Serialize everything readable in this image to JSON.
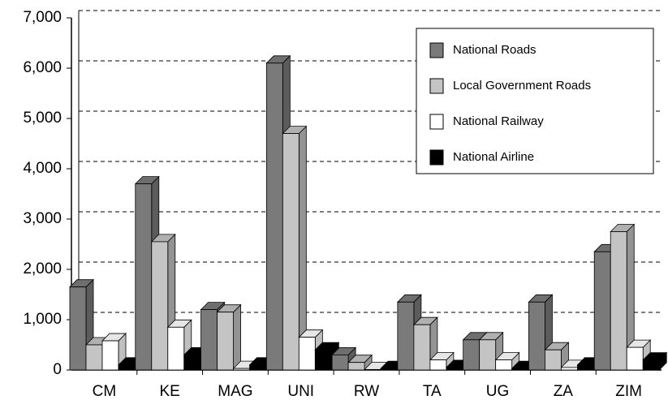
{
  "chart_data": {
    "type": "bar3d",
    "categories": [
      "CM",
      "KE",
      "MAG",
      "UNI",
      "RW",
      "TA",
      "UG",
      "ZA",
      "ZIM"
    ],
    "series": [
      {
        "name": "National Roads",
        "color": "#7a7a7a",
        "values": [
          1650,
          3700,
          1200,
          6100,
          300,
          1350,
          600,
          1350,
          2350
        ]
      },
      {
        "name": "Local Government Roads",
        "color": "#c4c4c4",
        "values": [
          500,
          2550,
          1150,
          4700,
          150,
          900,
          600,
          400,
          2750
        ]
      },
      {
        "name": "National Railway",
        "color": "#ffffff",
        "values": [
          580,
          850,
          30,
          650,
          10,
          200,
          200,
          50,
          450
        ]
      },
      {
        "name": "National Airline",
        "color": "#000000",
        "values": [
          100,
          300,
          100,
          400,
          30,
          50,
          30,
          100,
          200
        ]
      }
    ],
    "ylim": [
      0,
      7000
    ],
    "yticks": [
      {
        "value": 0,
        "label": "0"
      },
      {
        "value": 1000,
        "label": "1,000"
      },
      {
        "value": 2000,
        "label": "2,000"
      },
      {
        "value": 3000,
        "label": "3,000"
      },
      {
        "value": 4000,
        "label": "4,000"
      },
      {
        "value": 5000,
        "label": "5,000"
      },
      {
        "value": 6000,
        "label": "6,000"
      },
      {
        "value": 7000,
        "label": "7,000"
      }
    ],
    "grid": true,
    "legend": "upper right"
  }
}
